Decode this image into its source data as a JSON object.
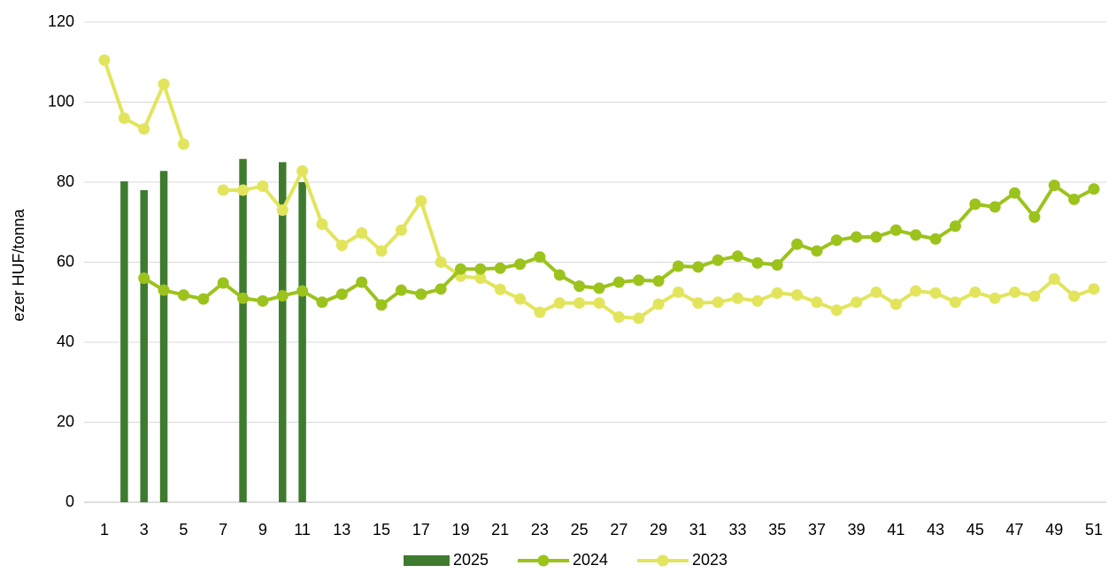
{
  "chart_data": {
    "type": "bar+line",
    "title": "",
    "xlabel": "",
    "ylabel": "ezer HUF/tonna",
    "ylim": [
      0,
      120
    ],
    "yticks": [
      0,
      20,
      40,
      60,
      80,
      100,
      120
    ],
    "x": [
      1,
      2,
      3,
      4,
      5,
      6,
      7,
      8,
      9,
      10,
      11,
      12,
      13,
      14,
      15,
      16,
      17,
      18,
      19,
      20,
      21,
      22,
      23,
      24,
      25,
      26,
      27,
      28,
      29,
      30,
      31,
      32,
      33,
      34,
      35,
      36,
      37,
      38,
      39,
      40,
      41,
      42,
      43,
      44,
      45,
      46,
      47,
      48,
      49,
      50,
      51
    ],
    "xtick_labels": [
      "1",
      "3",
      "5",
      "7",
      "9",
      "11",
      "13",
      "15",
      "17",
      "19",
      "21",
      "23",
      "25",
      "27",
      "29",
      "31",
      "33",
      "35",
      "37",
      "39",
      "41",
      "43",
      "45",
      "47",
      "49",
      "51"
    ],
    "grid": "horizontal",
    "legend_position": "bottom",
    "series": [
      {
        "name": "2025",
        "type": "bar",
        "color": "#3e7b2f",
        "points": [
          [
            2,
            80.2
          ],
          [
            3,
            78.0
          ],
          [
            4,
            82.8
          ],
          [
            8,
            85.8
          ],
          [
            10,
            85.0
          ],
          [
            11,
            80.0
          ]
        ]
      },
      {
        "name": "2024",
        "type": "line",
        "color": "#9bc31c",
        "values": [
          null,
          null,
          56.0,
          53.0,
          51.8,
          50.8,
          54.8,
          51.0,
          50.3,
          51.6,
          52.8,
          50.0,
          52.0,
          55.0,
          49.3,
          53.0,
          52.0,
          53.3,
          58.3,
          58.3,
          58.5,
          59.5,
          61.3,
          56.8,
          54.0,
          53.5,
          55.0,
          55.5,
          55.3,
          59.0,
          58.8,
          60.5,
          61.5,
          59.8,
          59.3,
          64.5,
          62.8,
          65.5,
          66.3,
          66.3,
          68.0,
          66.8,
          65.8,
          69.0,
          74.5,
          73.8,
          77.3,
          71.3,
          79.2,
          75.7,
          78.3
        ]
      },
      {
        "name": "2023",
        "type": "line",
        "color": "#e2e55c",
        "values": [
          110.5,
          96.0,
          93.3,
          104.5,
          89.5,
          null,
          78.0,
          78.0,
          79.0,
          73.0,
          82.8,
          69.5,
          64.2,
          67.3,
          62.8,
          68.0,
          75.3,
          60.0,
          56.5,
          56.0,
          53.2,
          50.8,
          47.5,
          49.8,
          49.8,
          49.8,
          46.3,
          46.0,
          49.5,
          52.5,
          49.8,
          50.0,
          51.0,
          50.3,
          52.3,
          51.8,
          50.0,
          48.0,
          50.0,
          52.5,
          49.5,
          52.8,
          52.3,
          50.0,
          52.5,
          51.0,
          52.5,
          51.5,
          55.8,
          51.5,
          53.3
        ]
      }
    ]
  }
}
